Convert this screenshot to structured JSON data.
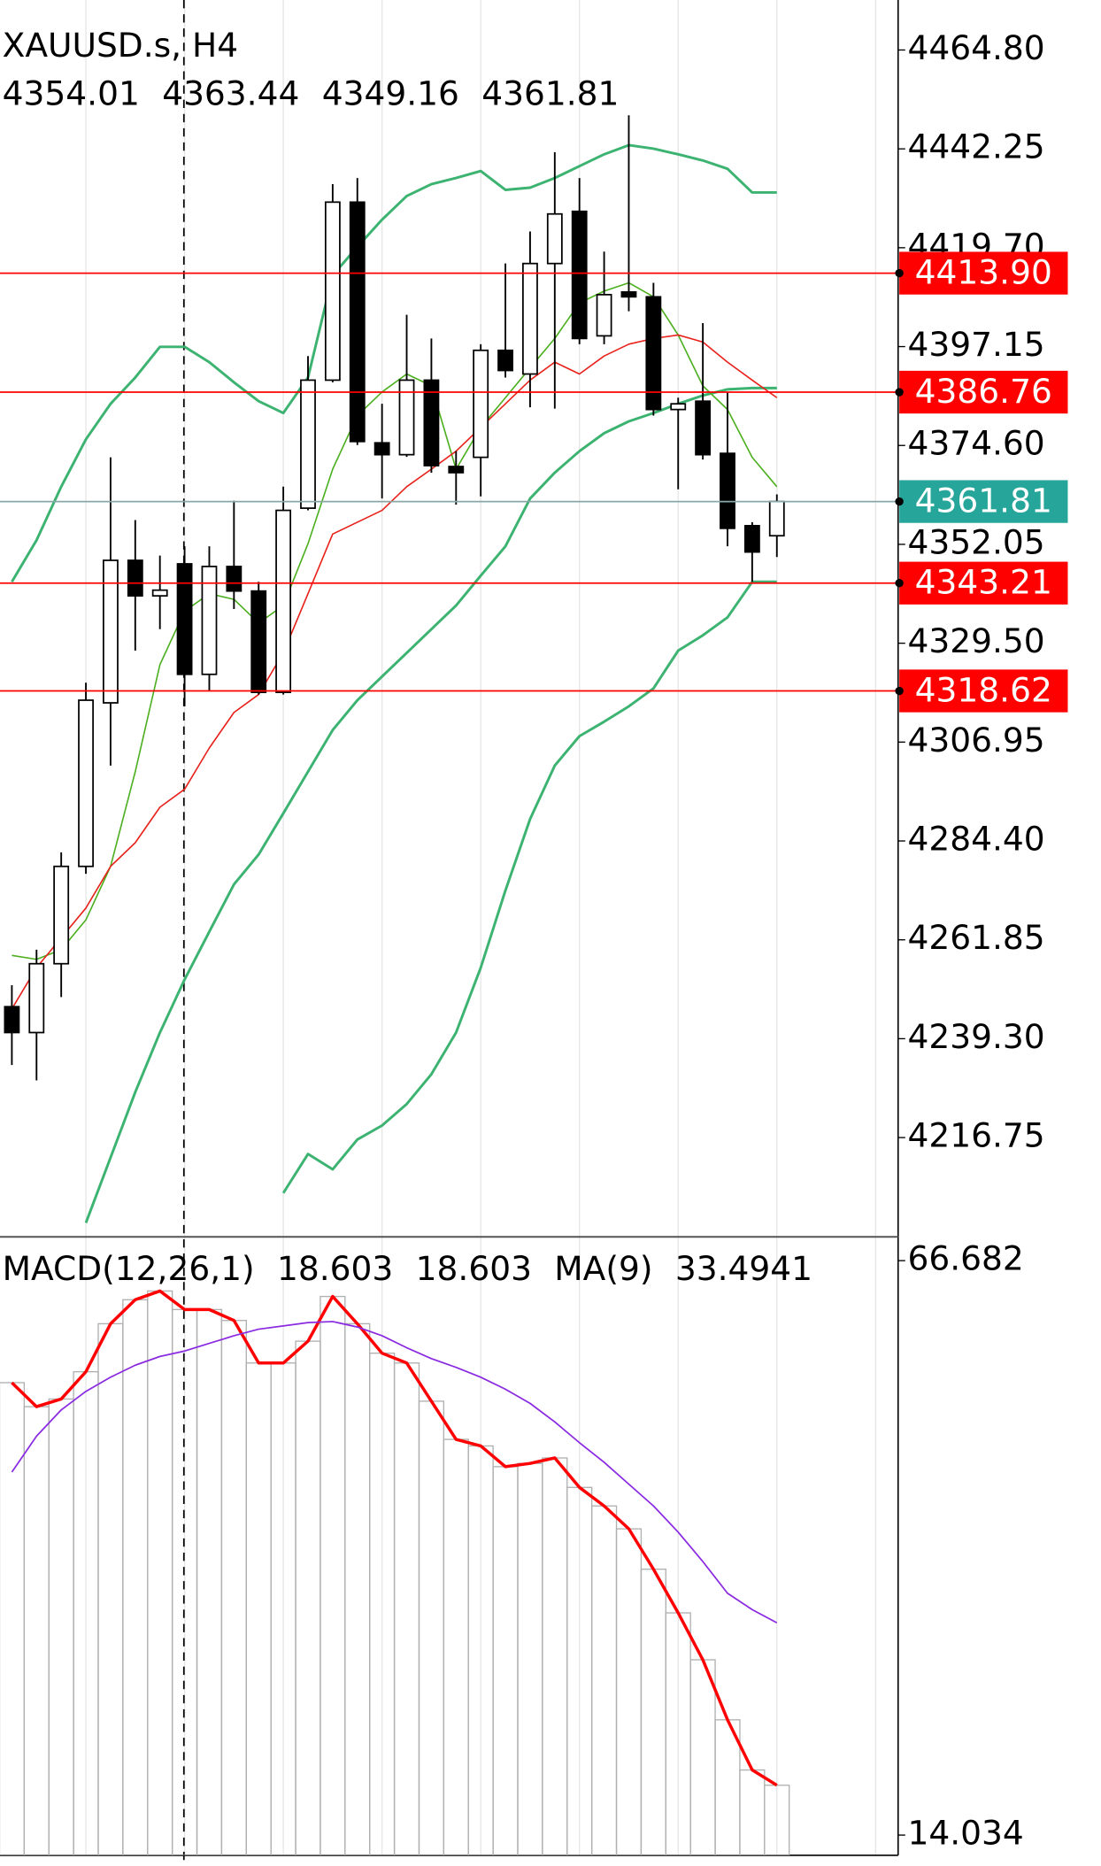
{
  "chart_data": [
    {
      "type": "candlestick",
      "title": "XAUUSD.s, H4",
      "open": [
        4246.6,
        4240.7,
        4256.4,
        4278.6,
        4315.9,
        4348.4,
        4340.3,
        4347.6,
        4322.4,
        4347.0,
        4341.4,
        4318.3,
        4360.3,
        4389.5,
        4430.1,
        4375.2,
        4372.5,
        4389.5,
        4369.8,
        4371.9,
        4396.3,
        4390.9,
        4416.1,
        4428.0,
        4399.6,
        4409.6,
        4408.5,
        4382.8,
        4384.7,
        4372.8,
        4356.3,
        4354.01
      ],
      "high": [
        4251.5,
        4259.6,
        4281.8,
        4320.5,
        4371.9,
        4357.6,
        4349.5,
        4351.6,
        4351.6,
        4362.0,
        4343.5,
        4365.2,
        4395.0,
        4434.2,
        4435.6,
        4384.1,
        4404.4,
        4399.0,
        4373.3,
        4397.7,
        4416.1,
        4423.4,
        4441.5,
        4435.6,
        4418.8,
        4449.9,
        4411.7,
        4385.5,
        4402.5,
        4386.8,
        4357.1,
        4363.44
      ],
      "low": [
        4233.3,
        4229.8,
        4248.8,
        4276.9,
        4301.6,
        4327.8,
        4332.7,
        4315.1,
        4318.6,
        4337.3,
        4317.8,
        4317.8,
        4359.8,
        4389.0,
        4374.7,
        4362.5,
        4372.0,
        4368.4,
        4361.1,
        4363.0,
        4390.1,
        4383.3,
        4383.0,
        4397.7,
        4397.7,
        4405.2,
        4381.4,
        4364.6,
        4371.4,
        4351.6,
        4343.5,
        4349.16
      ],
      "close": [
        4240.7,
        4256.4,
        4278.6,
        4316.5,
        4348.4,
        4340.3,
        4341.6,
        4322.4,
        4347.0,
        4341.4,
        4318.3,
        4359.8,
        4389.5,
        4430.1,
        4375.5,
        4372.5,
        4389.5,
        4370.0,
        4368.4,
        4396.3,
        4391.7,
        4416.1,
        4427.4,
        4399.0,
        4409.0,
        4408.5,
        4382.8,
        4384.1,
        4372.5,
        4355.7,
        4350.3,
        4361.81
      ],
      "bull_color": "#ffffff",
      "bear_color": "#000000",
      "overlays": [
        {
          "color": "#3cb371",
          "width": 2.2,
          "values": [
            4343.5,
            4353.0,
            4365.2,
            4376.0,
            4384.1,
            4390.1,
            4397.1,
            4397.1,
            4393.6,
            4389.0,
            4384.7,
            4382.0,
            4390.1,
            4413.4,
            4419.9,
            4426.1,
            4431.5,
            4434.2,
            4435.6,
            4437.2,
            4432.9,
            4433.4,
            4435.6,
            4438.3,
            4441.0,
            4443.1,
            4442.3,
            4441.0,
            4439.6,
            4437.7,
            4432.3,
            4432.3
          ]
        },
        {
          "color": "#3cb371",
          "width": 2.2,
          "values": [
            null,
            null,
            null,
            4197.3,
            4212.2,
            4227.1,
            4240.7,
            4252.8,
            4263.7,
            4274.5,
            4281.3,
            4290.7,
            4300.2,
            4309.7,
            4316.5,
            4321.9,
            4327.3,
            4332.7,
            4338.1,
            4344.9,
            4351.6,
            4362.5,
            4368.4,
            4373.3,
            4377.4,
            4380.1,
            4382.0,
            4384.1,
            4386.0,
            4387.4,
            4387.7,
            4387.7
          ]
        },
        {
          "color": "#3cb371",
          "width": 2.2,
          "values": [
            null,
            null,
            null,
            null,
            null,
            null,
            null,
            null,
            null,
            null,
            null,
            4204.1,
            4213.0,
            4209.5,
            4216.3,
            4219.5,
            4224.4,
            4231.2,
            4240.7,
            4255.5,
            4273.1,
            4289.4,
            4301.6,
            4308.3,
            4311.6,
            4315.1,
            4319.2,
            4327.8,
            4331.3,
            4335.4,
            4343.5,
            4343.5
          ]
        },
        {
          "color": "#4caf1f",
          "width": 1.2,
          "values": [
            4258.3,
            4257.4,
            4259.6,
            4266.4,
            4278.6,
            4300.2,
            4324.6,
            4336.8,
            4340.8,
            4339.5,
            4334.1,
            4338.1,
            4352.2,
            4369.2,
            4381.4,
            4386.8,
            4390.9,
            4388.2,
            4369.2,
            4378.7,
            4385.5,
            4392.3,
            4399.0,
            4407.1,
            4409.8,
            4411.7,
            4408.5,
            4399.8,
            4388.2,
            4382.8,
            4371.9,
            4365.2
          ]
        },
        {
          "color": "#e8211b",
          "width": 1.2,
          "values": [
            4246.1,
            4255.5,
            4262.3,
            4269.1,
            4278.6,
            4284.0,
            4292.1,
            4296.2,
            4305.6,
            4313.7,
            4317.8,
            4327.3,
            4340.8,
            4354.4,
            4357.1,
            4359.8,
            4365.2,
            4369.2,
            4373.3,
            4378.7,
            4384.1,
            4389.5,
            4393.6,
            4390.9,
            4395.0,
            4397.7,
            4399.0,
            4399.8,
            4398.2,
            4393.6,
            4389.5,
            4385.5
          ]
        }
      ],
      "ylim": [
        4194.1,
        4476.2
      ],
      "yticks": [
        {
          "value": 4464.8,
          "label": "4464.80"
        },
        4442.25,
        {
          "value": 4419.7,
          "label": "4419.70"
        },
        4397.15,
        {
          "value": 4374.6,
          "label": "4374.60"
        },
        4352.05,
        {
          "value": 4329.5,
          "label": "4329.50"
        },
        4306.95,
        {
          "value": 4284.4,
          "label": "4284.40"
        },
        4261.85,
        {
          "value": 4239.3,
          "label": "4239.30"
        },
        4216.75
      ],
      "levels": [
        {
          "value": 4413.9,
          "label": "4413.90"
        },
        4386.76,
        4343.21,
        4318.62
      ],
      "level_color": "#ff0000",
      "bid": 4361.81,
      "bid_color": "#26a69a"
    },
    {
      "type": "macd",
      "title": "MACD(12,26,1)",
      "main_value": 18.603,
      "signal_value": 18.603,
      "ma_title": "MA(9)",
      "ma_value": 33.4941,
      "macd": [
        55.5,
        53.3,
        54.0,
        56.5,
        60.9,
        63.1,
        63.9,
        62.2,
        62.2,
        61.2,
        57.3,
        57.3,
        59.3,
        63.4,
        60.9,
        58.2,
        57.3,
        53.8,
        50.3,
        49.7,
        47.8,
        48.1,
        48.6,
        45.9,
        44.2,
        42.1,
        38.4,
        34.4,
        30.1,
        24.6,
        20.0,
        18.603
      ],
      "macd_color": "#ff0000",
      "histogram_color": "#b0b0b0",
      "signal": [
        47.3,
        50.6,
        53.0,
        54.7,
        56.0,
        57.1,
        57.9,
        58.4,
        59.1,
        59.8,
        60.4,
        60.7,
        61.0,
        61.1,
        60.6,
        59.8,
        58.7,
        57.7,
        56.9,
        56.0,
        54.9,
        53.6,
        51.9,
        50.0,
        48.2,
        46.2,
        44.2,
        41.8,
        39.1,
        36.2,
        34.7,
        33.4941
      ],
      "signal_color": "#8a2be2",
      "ylim": [
        12.18,
        68.86
      ],
      "yticks": [
        66.682,
        14.034
      ]
    }
  ]
}
